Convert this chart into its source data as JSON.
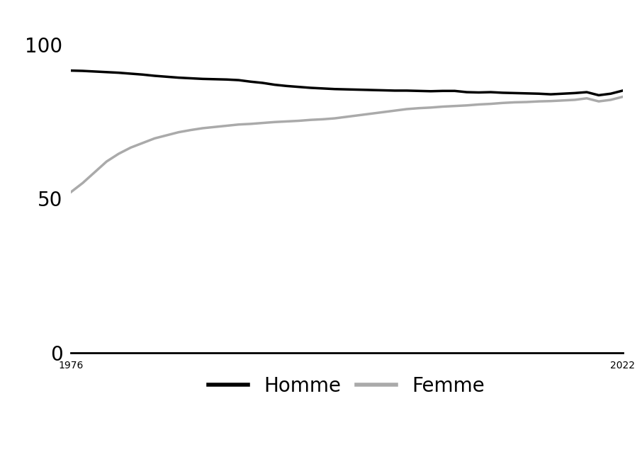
{
  "homme_years": [
    1976,
    1977,
    1978,
    1979,
    1980,
    1981,
    1982,
    1983,
    1984,
    1985,
    1986,
    1987,
    1988,
    1989,
    1990,
    1991,
    1992,
    1993,
    1994,
    1995,
    1996,
    1997,
    1998,
    1999,
    2000,
    2001,
    2002,
    2003,
    2004,
    2005,
    2006,
    2007,
    2008,
    2009,
    2010,
    2011,
    2012,
    2013,
    2014,
    2015,
    2016,
    2017,
    2018,
    2019,
    2020,
    2021,
    2022
  ],
  "homme_values": [
    91.5,
    91.4,
    91.2,
    91.0,
    90.8,
    90.5,
    90.2,
    89.8,
    89.5,
    89.2,
    89.0,
    88.8,
    88.7,
    88.6,
    88.4,
    87.9,
    87.5,
    86.9,
    86.5,
    86.2,
    85.9,
    85.7,
    85.5,
    85.4,
    85.3,
    85.2,
    85.1,
    85.0,
    85.0,
    84.9,
    84.8,
    84.9,
    84.9,
    84.5,
    84.4,
    84.5,
    84.3,
    84.2,
    84.1,
    84.0,
    83.8,
    84.0,
    84.2,
    84.5,
    83.5,
    84.0,
    85.0
  ],
  "femme_years": [
    1976,
    1977,
    1978,
    1979,
    1980,
    1981,
    1982,
    1983,
    1984,
    1985,
    1986,
    1987,
    1988,
    1989,
    1990,
    1991,
    1992,
    1993,
    1994,
    1995,
    1996,
    1997,
    1998,
    1999,
    2000,
    2001,
    2002,
    2003,
    2004,
    2005,
    2006,
    2007,
    2008,
    2009,
    2010,
    2011,
    2012,
    2013,
    2014,
    2015,
    2016,
    2017,
    2018,
    2019,
    2020,
    2021,
    2022
  ],
  "femme_values": [
    52.0,
    55.0,
    58.5,
    62.0,
    64.5,
    66.5,
    68.0,
    69.5,
    70.5,
    71.5,
    72.2,
    72.8,
    73.2,
    73.6,
    74.0,
    74.2,
    74.5,
    74.8,
    75.0,
    75.2,
    75.5,
    75.7,
    76.0,
    76.5,
    77.0,
    77.5,
    78.0,
    78.5,
    79.0,
    79.3,
    79.5,
    79.8,
    80.0,
    80.2,
    80.5,
    80.7,
    81.0,
    81.2,
    81.3,
    81.5,
    81.6,
    81.8,
    82.0,
    82.5,
    81.5,
    82.0,
    83.0
  ],
  "homme_color": "#000000",
  "femme_color": "#aaaaaa",
  "background_color": "#ffffff",
  "yticks": [
    0,
    50,
    100
  ],
  "xticks": [
    1976,
    2022
  ],
  "ylim": [
    0,
    110
  ],
  "xlim": [
    1976,
    2022
  ],
  "legend_homme": "Homme",
  "legend_femme": "Femme",
  "linewidth": 2.5,
  "tick_fontsize": 20,
  "legend_fontsize": 20
}
